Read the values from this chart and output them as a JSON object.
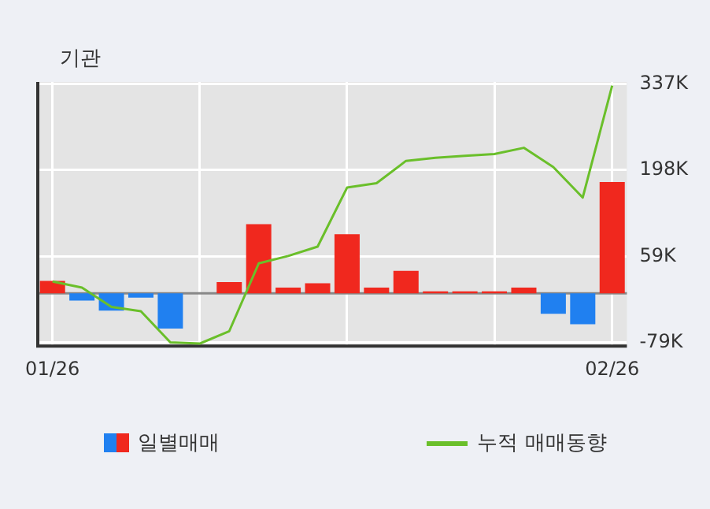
{
  "chart_data": {
    "type": "bar",
    "title": "기관",
    "categories": [
      "01/26",
      null,
      null,
      null,
      null,
      null,
      null,
      null,
      null,
      null,
      null,
      null,
      null,
      null,
      null,
      null,
      null,
      null,
      null,
      "02/26"
    ],
    "series": [
      {
        "name": "일별매매",
        "colors": [
          "#f0281e",
          "#2080f0",
          "#2080f0",
          "#2080f0",
          "#2080f0",
          "#f0281e",
          "#f0281e",
          "#f0281e",
          "#f0281e",
          "#f0281e",
          "#f0281e",
          "#f0281e",
          "#f0281e",
          "#f0281e",
          "#f0281e",
          "#f0281e",
          "#f0281e",
          "#2080f0",
          "#2080f0",
          "#f0281e"
        ],
        "values": [
          20,
          -12,
          -28,
          -7,
          -57,
          0,
          18,
          111,
          9,
          16,
          95,
          9,
          36,
          3,
          3,
          3,
          9,
          -33,
          -50,
          179
        ]
      },
      {
        "name": "누적 매매동향",
        "type": "line",
        "color": "#6abf2a",
        "values": [
          19,
          9,
          -22,
          -29,
          -79,
          -81,
          -61,
          48,
          60,
          75,
          170,
          177,
          213,
          218,
          221,
          224,
          234,
          203,
          154,
          334
        ]
      }
    ],
    "ylim": [
      -85,
      340
    ],
    "yticks": [
      {
        "value": 337,
        "label": "337K"
      },
      {
        "value": 198,
        "label": "198K"
      },
      {
        "value": 59,
        "label": "59K"
      },
      {
        "value": -79,
        "label": "-79K"
      }
    ],
    "grid": true,
    "legend": "bottom",
    "marker": "none"
  }
}
